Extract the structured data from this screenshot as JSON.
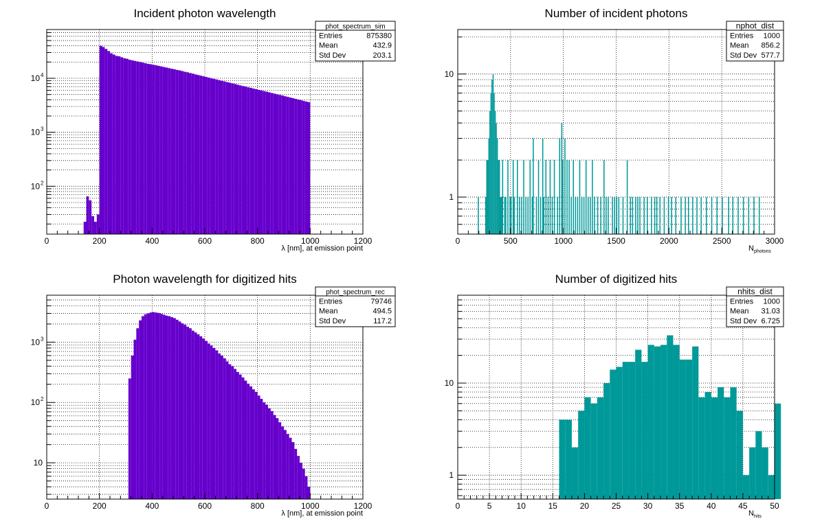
{
  "colors": {
    "purple": "#6600cc",
    "teal": "#009999",
    "grid": "#000000",
    "frame": "#000000"
  },
  "chart_data": [
    {
      "id": "phot_sim",
      "type": "bar",
      "title": "Incident photon wavelength",
      "xlabel": "λ [nm], at emission point",
      "xlabel_sub": "",
      "ylabel": "",
      "xscale": "linear",
      "yscale": "log",
      "xlim": [
        0,
        1200
      ],
      "ylim": [
        13,
        80000
      ],
      "grid": true,
      "fill": "#6600cc",
      "xticks": [
        0,
        200,
        400,
        600,
        800,
        1000,
        1200
      ],
      "xtick_labels": [
        "0",
        "200",
        "400",
        "600",
        "800",
        "1000",
        "1200"
      ],
      "yticks": [
        100,
        1000,
        10000
      ],
      "ytick_labels": [
        "10",
        "10",
        "10"
      ],
      "ytick_sups": [
        "2",
        "3",
        "4"
      ],
      "stats": {
        "name": "phot_spectrum_sim",
        "rows": [
          [
            "Entries",
            "875380"
          ],
          [
            "Mean",
            "432.9"
          ],
          [
            "Std Dev",
            "203.1"
          ]
        ]
      },
      "bin_width": 10,
      "bins": [
        [
          140,
          22
        ],
        [
          150,
          65
        ],
        [
          160,
          55
        ],
        [
          170,
          28
        ],
        [
          180,
          22
        ],
        [
          190,
          30
        ],
        [
          200,
          40000
        ],
        [
          210,
          38000
        ],
        [
          220,
          35000
        ],
        [
          230,
          32000
        ],
        [
          240,
          29000
        ],
        [
          250,
          27500
        ],
        [
          260,
          26000
        ],
        [
          270,
          25500
        ],
        [
          280,
          24500
        ],
        [
          290,
          23500
        ],
        [
          300,
          23000
        ],
        [
          310,
          22000
        ],
        [
          320,
          21500
        ],
        [
          330,
          21000
        ],
        [
          340,
          20500
        ],
        [
          350,
          20000
        ],
        [
          360,
          19500
        ],
        [
          370,
          19000
        ],
        [
          380,
          18500
        ],
        [
          390,
          18200
        ],
        [
          400,
          17800
        ],
        [
          410,
          17400
        ],
        [
          420,
          17000
        ],
        [
          430,
          16600
        ],
        [
          440,
          16200
        ],
        [
          450,
          15800
        ],
        [
          460,
          15400
        ],
        [
          470,
          15000
        ],
        [
          480,
          14700
        ],
        [
          490,
          14300
        ],
        [
          500,
          14000
        ],
        [
          510,
          13600
        ],
        [
          520,
          13200
        ],
        [
          530,
          12900
        ],
        [
          540,
          12500
        ],
        [
          550,
          12200
        ],
        [
          560,
          11800
        ],
        [
          570,
          11500
        ],
        [
          580,
          11200
        ],
        [
          590,
          10900
        ],
        [
          600,
          10600
        ],
        [
          610,
          10300
        ],
        [
          620,
          10000
        ],
        [
          630,
          9750
        ],
        [
          640,
          9500
        ],
        [
          650,
          9250
        ],
        [
          660,
          9000
        ],
        [
          670,
          8750
        ],
        [
          680,
          8500
        ],
        [
          690,
          8300
        ],
        [
          700,
          8050
        ],
        [
          710,
          7850
        ],
        [
          720,
          7600
        ],
        [
          730,
          7400
        ],
        [
          740,
          7200
        ],
        [
          750,
          7000
        ],
        [
          760,
          6800
        ],
        [
          770,
          6650
        ],
        [
          780,
          6450
        ],
        [
          790,
          6300
        ],
        [
          800,
          6100
        ],
        [
          810,
          5950
        ],
        [
          820,
          5800
        ],
        [
          830,
          5650
        ],
        [
          840,
          5500
        ],
        [
          850,
          5350
        ],
        [
          860,
          5200
        ],
        [
          870,
          5050
        ],
        [
          880,
          4920
        ],
        [
          890,
          4800
        ],
        [
          900,
          4650
        ],
        [
          910,
          4530
        ],
        [
          920,
          4400
        ],
        [
          930,
          4280
        ],
        [
          940,
          4160
        ],
        [
          950,
          4050
        ],
        [
          960,
          3930
        ],
        [
          970,
          3820
        ],
        [
          980,
          3720
        ],
        [
          990,
          3620
        ]
      ]
    },
    {
      "id": "nphot",
      "type": "bar",
      "title": "Number of incident photons",
      "xlabel": "N",
      "xlabel_sub": "photons",
      "ylabel": "",
      "xscale": "linear",
      "yscale": "log",
      "xlim": [
        0,
        3000
      ],
      "ylim": [
        0.5,
        23
      ],
      "grid": true,
      "fill": "#009999",
      "xticks": [
        0,
        500,
        1000,
        1500,
        2000,
        2500,
        3000
      ],
      "xtick_labels": [
        "0",
        "500",
        "1000",
        "1500",
        "2000",
        "2500",
        "3000"
      ],
      "yticks": [
        1,
        10
      ],
      "ytick_labels": [
        "1",
        "10"
      ],
      "ytick_sups": [
        "",
        ""
      ],
      "stats": {
        "name": "nphot_dist",
        "rows": [
          [
            "Entries",
            "1000"
          ],
          [
            "Mean",
            "856.2"
          ],
          [
            "Std Dev",
            "577.7"
          ]
        ]
      },
      "bin_width": 10,
      "bins": [
        [
          190,
          1
        ],
        [
          260,
          1
        ],
        [
          270,
          2
        ],
        [
          280,
          2
        ],
        [
          290,
          3
        ],
        [
          300,
          5
        ],
        [
          310,
          7
        ],
        [
          320,
          9
        ],
        [
          330,
          10
        ],
        [
          340,
          7
        ],
        [
          350,
          5
        ],
        [
          360,
          4
        ],
        [
          370,
          3
        ],
        [
          380,
          2
        ],
        [
          390,
          2
        ],
        [
          400,
          1
        ],
        [
          410,
          1
        ],
        [
          420,
          2
        ],
        [
          440,
          1
        ],
        [
          450,
          1
        ],
        [
          470,
          2
        ],
        [
          490,
          1
        ],
        [
          500,
          1
        ],
        [
          520,
          2
        ],
        [
          530,
          1
        ],
        [
          560,
          2
        ],
        [
          580,
          1
        ],
        [
          600,
          1
        ],
        [
          620,
          2
        ],
        [
          640,
          1
        ],
        [
          660,
          1
        ],
        [
          680,
          2
        ],
        [
          700,
          1
        ],
        [
          710,
          3
        ],
        [
          740,
          1
        ],
        [
          760,
          2
        ],
        [
          780,
          1
        ],
        [
          800,
          3
        ],
        [
          810,
          1
        ],
        [
          830,
          2
        ],
        [
          850,
          1
        ],
        [
          870,
          2
        ],
        [
          890,
          1
        ],
        [
          910,
          2
        ],
        [
          940,
          1
        ],
        [
          960,
          3
        ],
        [
          980,
          4
        ],
        [
          990,
          2
        ],
        [
          1010,
          3
        ],
        [
          1030,
          2
        ],
        [
          1050,
          2
        ],
        [
          1070,
          1
        ],
        [
          1090,
          2
        ],
        [
          1110,
          1
        ],
        [
          1130,
          1
        ],
        [
          1150,
          2
        ],
        [
          1170,
          1
        ],
        [
          1190,
          1
        ],
        [
          1210,
          2
        ],
        [
          1230,
          1
        ],
        [
          1250,
          1
        ],
        [
          1270,
          2
        ],
        [
          1290,
          1
        ],
        [
          1320,
          1
        ],
        [
          1350,
          1
        ],
        [
          1380,
          2
        ],
        [
          1400,
          1
        ],
        [
          1420,
          1
        ],
        [
          1460,
          1
        ],
        [
          1480,
          1
        ],
        [
          1500,
          1
        ],
        [
          1520,
          1
        ],
        [
          1560,
          1
        ],
        [
          1600,
          2
        ],
        [
          1630,
          1
        ],
        [
          1650,
          1
        ],
        [
          1680,
          1
        ],
        [
          1700,
          1
        ],
        [
          1720,
          1
        ],
        [
          1760,
          1
        ],
        [
          1790,
          1
        ],
        [
          1830,
          1
        ],
        [
          1860,
          1
        ],
        [
          1880,
          1
        ],
        [
          1910,
          1
        ],
        [
          1950,
          1
        ],
        [
          1990,
          1
        ],
        [
          2020,
          1
        ],
        [
          2060,
          1
        ],
        [
          2110,
          1
        ],
        [
          2150,
          1
        ],
        [
          2180,
          1
        ],
        [
          2220,
          1
        ],
        [
          2260,
          1
        ],
        [
          2300,
          1
        ],
        [
          2350,
          1
        ],
        [
          2400,
          1
        ],
        [
          2450,
          1
        ],
        [
          2500,
          1
        ],
        [
          2560,
          1
        ],
        [
          2600,
          1
        ],
        [
          2650,
          1
        ],
        [
          2700,
          1
        ],
        [
          2750,
          1
        ],
        [
          2800,
          1
        ],
        [
          2850,
          1
        ]
      ]
    },
    {
      "id": "phot_rec",
      "type": "bar",
      "title": "Photon wavelength for digitized hits",
      "xlabel": "λ [nm], at emission point",
      "xlabel_sub": "",
      "ylabel": "",
      "xscale": "linear",
      "yscale": "log",
      "xlim": [
        0,
        1200
      ],
      "ylim": [
        2.5,
        6000
      ],
      "grid": true,
      "fill": "#6600cc",
      "xticks": [
        0,
        200,
        400,
        600,
        800,
        1000,
        1200
      ],
      "xtick_labels": [
        "0",
        "200",
        "400",
        "600",
        "800",
        "1000",
        "1200"
      ],
      "yticks": [
        10,
        100,
        1000
      ],
      "ytick_labels": [
        "10",
        "10",
        "10"
      ],
      "ytick_sups": [
        "",
        "2",
        "3"
      ],
      "stats": {
        "name": "phot_spectrum_rec",
        "rows": [
          [
            "Entries",
            "79746"
          ],
          [
            "Mean",
            "494.5"
          ],
          [
            "Std Dev",
            "117.2"
          ]
        ]
      },
      "bin_width": 10,
      "bins": [
        [
          310,
          250
        ],
        [
          320,
          600
        ],
        [
          330,
          1100
        ],
        [
          340,
          1700
        ],
        [
          350,
          2300
        ],
        [
          360,
          2700
        ],
        [
          370,
          2900
        ],
        [
          380,
          3000
        ],
        [
          390,
          3100
        ],
        [
          400,
          3150
        ],
        [
          410,
          3100
        ],
        [
          420,
          3050
        ],
        [
          430,
          2950
        ],
        [
          440,
          2850
        ],
        [
          450,
          2750
        ],
        [
          460,
          2700
        ],
        [
          470,
          2600
        ],
        [
          480,
          2500
        ],
        [
          490,
          2350
        ],
        [
          500,
          2200
        ],
        [
          510,
          2050
        ],
        [
          520,
          1950
        ],
        [
          530,
          1800
        ],
        [
          540,
          1700
        ],
        [
          550,
          1550
        ],
        [
          560,
          1450
        ],
        [
          570,
          1350
        ],
        [
          580,
          1250
        ],
        [
          590,
          1150
        ],
        [
          600,
          1050
        ],
        [
          610,
          950
        ],
        [
          620,
          880
        ],
        [
          630,
          800
        ],
        [
          640,
          730
        ],
        [
          650,
          650
        ],
        [
          660,
          600
        ],
        [
          670,
          540
        ],
        [
          680,
          480
        ],
        [
          690,
          430
        ],
        [
          700,
          400
        ],
        [
          710,
          360
        ],
        [
          720,
          320
        ],
        [
          730,
          290
        ],
        [
          740,
          260
        ],
        [
          750,
          230
        ],
        [
          760,
          205
        ],
        [
          770,
          185
        ],
        [
          780,
          165
        ],
        [
          790,
          150
        ],
        [
          800,
          130
        ],
        [
          810,
          115
        ],
        [
          820,
          100
        ],
        [
          830,
          92
        ],
        [
          840,
          80
        ],
        [
          850,
          72
        ],
        [
          860,
          62
        ],
        [
          870,
          55
        ],
        [
          880,
          47
        ],
        [
          890,
          40
        ],
        [
          900,
          35
        ],
        [
          910,
          30
        ],
        [
          920,
          26
        ],
        [
          930,
          22
        ],
        [
          940,
          17
        ],
        [
          950,
          13
        ],
        [
          960,
          10
        ],
        [
          970,
          8
        ],
        [
          980,
          6
        ],
        [
          990,
          4
        ]
      ]
    },
    {
      "id": "nhits",
      "type": "bar",
      "title": "Number of digitized hits",
      "xlabel": "N",
      "xlabel_sub": "hits",
      "ylabel": "",
      "xscale": "linear",
      "yscale": "log",
      "xlim": [
        0,
        50
      ],
      "ylim": [
        0.55,
        90
      ],
      "grid": true,
      "fill": "#009999",
      "xticks": [
        0,
        5,
        10,
        15,
        20,
        25,
        30,
        35,
        40,
        45,
        50
      ],
      "xtick_labels": [
        "0",
        "5",
        "10",
        "15",
        "20",
        "25",
        "30",
        "35",
        "40",
        "45",
        "50"
      ],
      "yticks": [
        1,
        10
      ],
      "ytick_labels": [
        "1",
        "10"
      ],
      "ytick_sups": [
        "",
        ""
      ],
      "stats": {
        "name": "nhits_dist",
        "rows": [
          [
            "Entries",
            "1000"
          ],
          [
            "Mean",
            "31.03"
          ],
          [
            "Std Dev",
            "6.725"
          ]
        ]
      },
      "bin_width": 1,
      "bins": [
        [
          16,
          4
        ],
        [
          17,
          4
        ],
        [
          18,
          2
        ],
        [
          19,
          5
        ],
        [
          20,
          7
        ],
        [
          21,
          6
        ],
        [
          22,
          7
        ],
        [
          23,
          10
        ],
        [
          24,
          14
        ],
        [
          25,
          15
        ],
        [
          26,
          17
        ],
        [
          27,
          17
        ],
        [
          28,
          23
        ],
        [
          29,
          17
        ],
        [
          30,
          26
        ],
        [
          31,
          25
        ],
        [
          32,
          26
        ],
        [
          33,
          33
        ],
        [
          34,
          26
        ],
        [
          35,
          18
        ],
        [
          36,
          18
        ],
        [
          37,
          25
        ],
        [
          38,
          7
        ],
        [
          39,
          8
        ],
        [
          40,
          7
        ],
        [
          41,
          9
        ],
        [
          42,
          7
        ],
        [
          43,
          9
        ],
        [
          44,
          5
        ],
        [
          45,
          1
        ],
        [
          46,
          2
        ],
        [
          47,
          3
        ],
        [
          48,
          2
        ],
        [
          49,
          1
        ],
        [
          50,
          6
        ]
      ]
    }
  ]
}
